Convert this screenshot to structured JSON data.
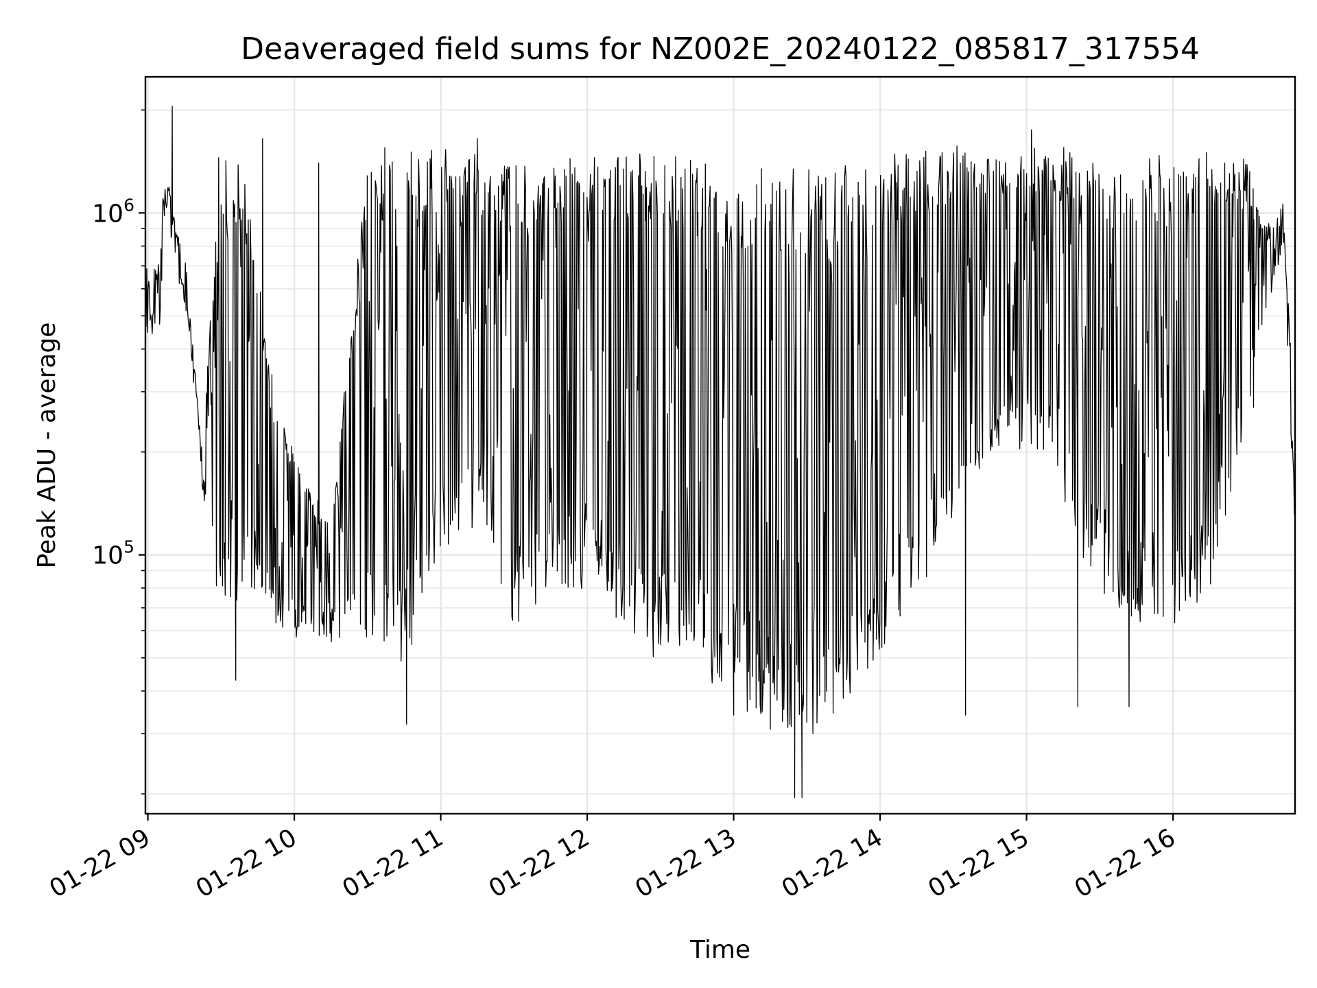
{
  "chart_data": {
    "type": "line",
    "title": "Deaveraged field sums for NZ002E_20240122_085817_317554",
    "xlabel": "Time",
    "ylabel": "Peak ADU - average",
    "yscale": "log",
    "ylim": [
      17500,
      2500000
    ],
    "xlim": [
      "2024-01-22 08:59",
      "2024-01-22 16:50"
    ],
    "grid": true,
    "x_ticks": [
      {
        "at": "2024-01-22 09:00",
        "label": "01-22 09"
      },
      {
        "at": "2024-01-22 10:00",
        "label": "01-22 10"
      },
      {
        "at": "2024-01-22 11:00",
        "label": "01-22 11"
      },
      {
        "at": "2024-01-22 12:00",
        "label": "01-22 12"
      },
      {
        "at": "2024-01-22 13:00",
        "label": "01-22 13"
      },
      {
        "at": "2024-01-22 14:00",
        "label": "01-22 14"
      },
      {
        "at": "2024-01-22 15:00",
        "label": "01-22 15"
      },
      {
        "at": "2024-01-22 16:00",
        "label": "01-22 16"
      }
    ],
    "y_ticks": [
      {
        "value": 100000,
        "base": "10",
        "exp": "5"
      },
      {
        "value": 1000000,
        "base": "10",
        "exp": "6"
      }
    ],
    "series": [
      {
        "color": "#000000",
        "profile": {
          "x": [
            "2024-01-22 08:59",
            "2024-01-22 09:05",
            "2024-01-22 09:07",
            "2024-01-22 09:12",
            "2024-01-22 09:16",
            "2024-01-22 09:20",
            "2024-01-22 09:22",
            "2024-01-22 09:30",
            "2024-01-22 09:40",
            "2024-01-22 09:50",
            "2024-01-22 10:00",
            "2024-01-22 10:15",
            "2024-01-22 10:30",
            "2024-01-22 10:45",
            "2024-01-22 11:00",
            "2024-01-22 11:15",
            "2024-01-22 11:30",
            "2024-01-22 11:45",
            "2024-01-22 12:00",
            "2024-01-22 12:15",
            "2024-01-22 12:30",
            "2024-01-22 12:45",
            "2024-01-22 13:00",
            "2024-01-22 13:15",
            "2024-01-22 13:30",
            "2024-01-22 13:45",
            "2024-01-22 14:00",
            "2024-01-22 14:15",
            "2024-01-22 14:30",
            "2024-01-22 14:45",
            "2024-01-22 15:00",
            "2024-01-22 15:15",
            "2024-01-22 15:30",
            "2024-01-22 15:45",
            "2024-01-22 16:00",
            "2024-01-22 16:15",
            "2024-01-22 16:30",
            "2024-01-22 16:38",
            "2024-01-22 16:45",
            "2024-01-22 16:50"
          ],
          "low": [
            430000,
            480000,
            1100000,
            700000,
            500000,
            240000,
            170000,
            60000,
            80000,
            70000,
            55000,
            58000,
            55000,
            48000,
            95000,
            130000,
            60000,
            75000,
            80000,
            60000,
            50000,
            45000,
            40000,
            30000,
            30000,
            35000,
            45000,
            75000,
            130000,
            190000,
            220000,
            140000,
            75000,
            60000,
            60000,
            80000,
            250000,
            500000,
            850000,
            120000
          ],
          "high": [
            650000,
            700000,
            1400000,
            900000,
            650000,
            300000,
            200000,
            1500000,
            1400000,
            350000,
            200000,
            120000,
            1500000,
            1500000,
            1500000,
            1500000,
            1400000,
            1400000,
            1500000,
            1500000,
            1500000,
            1400000,
            1300000,
            1300000,
            1300000,
            1300000,
            1400000,
            1500000,
            1550000,
            1550000,
            1500000,
            1500000,
            1400000,
            1400000,
            1500000,
            1500000,
            1400000,
            900000,
            1050000,
            250000
          ]
        },
        "spikes": [
          {
            "x": "2024-01-22 09:10",
            "y": 2050000
          },
          {
            "x": "2024-01-22 09:29",
            "y": 1450000
          },
          {
            "x": "2024-01-22 09:36",
            "y": 43000
          },
          {
            "x": "2024-01-22 09:47",
            "y": 1650000
          },
          {
            "x": "2024-01-22 10:10",
            "y": 1400000
          },
          {
            "x": "2024-01-22 10:46",
            "y": 32000
          },
          {
            "x": "2024-01-22 11:15",
            "y": 1650000
          },
          {
            "x": "2024-01-22 12:45",
            "y": 1350000
          },
          {
            "x": "2024-01-22 13:00",
            "y": 34000
          },
          {
            "x": "2024-01-22 13:25",
            "y": 19500
          },
          {
            "x": "2024-01-22 13:28",
            "y": 19500
          },
          {
            "x": "2024-01-22 14:35",
            "y": 34000
          },
          {
            "x": "2024-01-22 15:02",
            "y": 1750000
          },
          {
            "x": "2024-01-22 15:21",
            "y": 36000
          },
          {
            "x": "2024-01-22 15:42",
            "y": 36000
          },
          {
            "x": "2024-01-22 16:33",
            "y": 270000
          }
        ]
      }
    ]
  }
}
